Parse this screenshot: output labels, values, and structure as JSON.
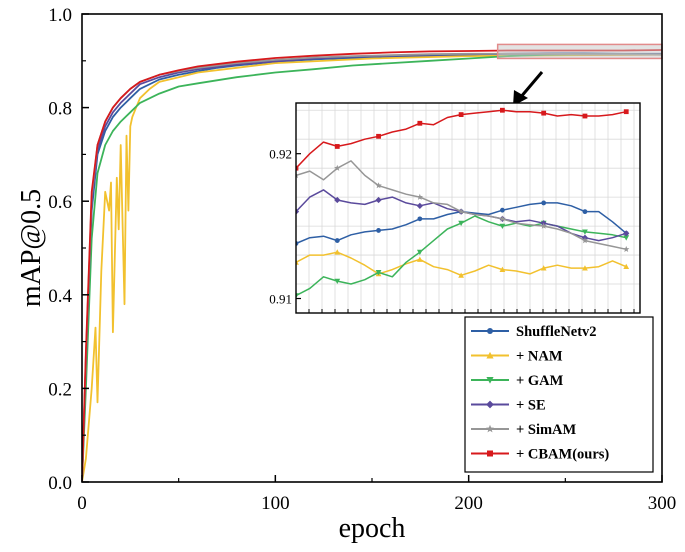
{
  "chart_data": {
    "type": "line",
    "title": "",
    "xlabel": "epoch",
    "ylabel": "mAP@0.5",
    "xlim": [
      0,
      300
    ],
    "ylim": [
      0.0,
      1.0
    ],
    "xticks": [
      0,
      100,
      200,
      300
    ],
    "yticks": [
      0.0,
      0.2,
      0.4,
      0.6,
      0.8,
      1.0
    ],
    "xtick_labels": [
      "0",
      "100",
      "200",
      "300"
    ],
    "ytick_labels": [
      "0.0",
      "0.2",
      "0.4",
      "0.6",
      "0.8",
      "1.0"
    ],
    "legend_position": "bottom-right",
    "series": [
      {
        "name": "ShuffleNetv2",
        "color": "#2e5fa5",
        "marker": "circle",
        "x": [
          0,
          2,
          5,
          8,
          12,
          16,
          20,
          25,
          30,
          40,
          50,
          60,
          70,
          80,
          100,
          120,
          140,
          160,
          180,
          200,
          220,
          240,
          260,
          280,
          300
        ],
        "y": [
          0.0,
          0.25,
          0.58,
          0.7,
          0.75,
          0.78,
          0.8,
          0.82,
          0.84,
          0.86,
          0.87,
          0.878,
          0.885,
          0.89,
          0.898,
          0.903,
          0.906,
          0.909,
          0.911,
          0.913,
          0.915,
          0.916,
          0.916,
          0.915,
          0.915
        ]
      },
      {
        "name": "+ NAM",
        "color": "#f2c12e",
        "marker": "triangle-up",
        "x": [
          0,
          2,
          5,
          7,
          8,
          10,
          12,
          14,
          15,
          16,
          18,
          19,
          20,
          22,
          23,
          24,
          25,
          26,
          28,
          30,
          35,
          40,
          50,
          60,
          80,
          100,
          150,
          200,
          250,
          300
        ],
        "y": [
          0.0,
          0.05,
          0.2,
          0.33,
          0.17,
          0.45,
          0.62,
          0.58,
          0.64,
          0.32,
          0.65,
          0.54,
          0.72,
          0.38,
          0.74,
          0.58,
          0.76,
          0.78,
          0.8,
          0.82,
          0.84,
          0.855,
          0.865,
          0.875,
          0.885,
          0.895,
          0.905,
          0.91,
          0.912,
          0.913
        ]
      },
      {
        "name": "+ GAM",
        "color": "#3cb45a",
        "marker": "triangle-down",
        "x": [
          0,
          2,
          5,
          8,
          12,
          16,
          20,
          25,
          30,
          40,
          50,
          60,
          80,
          100,
          120,
          140,
          160,
          180,
          200,
          220,
          240,
          260,
          280,
          300
        ],
        "y": [
          0.0,
          0.2,
          0.52,
          0.66,
          0.72,
          0.75,
          0.77,
          0.79,
          0.81,
          0.83,
          0.845,
          0.852,
          0.865,
          0.875,
          0.882,
          0.89,
          0.895,
          0.9,
          0.905,
          0.91,
          0.913,
          0.914,
          0.914,
          0.914
        ]
      },
      {
        "name": "+ SE",
        "color": "#5a4a9c",
        "marker": "diamond",
        "x": [
          0,
          2,
          5,
          8,
          12,
          16,
          20,
          25,
          30,
          40,
          50,
          60,
          80,
          100,
          120,
          140,
          160,
          180,
          200,
          220,
          240,
          260,
          280,
          300
        ],
        "y": [
          0.0,
          0.26,
          0.6,
          0.71,
          0.76,
          0.79,
          0.81,
          0.83,
          0.85,
          0.865,
          0.875,
          0.882,
          0.892,
          0.899,
          0.905,
          0.909,
          0.911,
          0.913,
          0.914,
          0.915,
          0.915,
          0.914,
          0.914,
          0.914
        ]
      },
      {
        "name": "+ SimAM",
        "color": "#969696",
        "marker": "star",
        "x": [
          0,
          2,
          5,
          8,
          12,
          16,
          20,
          25,
          30,
          40,
          50,
          60,
          80,
          100,
          120,
          140,
          160,
          180,
          200,
          220,
          240,
          260,
          280,
          300
        ],
        "y": [
          0.0,
          0.27,
          0.61,
          0.72,
          0.77,
          0.8,
          0.82,
          0.84,
          0.855,
          0.87,
          0.878,
          0.885,
          0.895,
          0.902,
          0.907,
          0.91,
          0.912,
          0.914,
          0.915,
          0.915,
          0.915,
          0.914,
          0.914,
          0.913
        ]
      },
      {
        "name": "+ CBAM(ours)",
        "color": "#d7191c",
        "marker": "square",
        "x": [
          0,
          2,
          5,
          8,
          12,
          16,
          20,
          25,
          30,
          40,
          50,
          60,
          80,
          100,
          120,
          140,
          160,
          180,
          200,
          220,
          240,
          260,
          280,
          300
        ],
        "y": [
          0.0,
          0.28,
          0.62,
          0.72,
          0.77,
          0.8,
          0.82,
          0.84,
          0.855,
          0.87,
          0.88,
          0.888,
          0.898,
          0.906,
          0.911,
          0.915,
          0.918,
          0.92,
          0.921,
          0.922,
          0.922,
          0.922,
          0.922,
          0.923
        ]
      }
    ],
    "annotations": [
      {
        "type": "zoom-box",
        "x_range": [
          215,
          300
        ],
        "y_range": [
          0.905,
          0.935
        ]
      },
      {
        "type": "arrow",
        "direction": "down-left",
        "points_to": "inset"
      }
    ],
    "inset": {
      "xlim": [
        210,
        285
      ],
      "ylim": [
        0.909,
        0.9235
      ],
      "yticks": [
        0.91,
        0.92
      ],
      "ytick_labels": [
        "0.91",
        "0.92"
      ],
      "grid": true,
      "series": [
        {
          "name": "ShuffleNetv2",
          "x": [
            210,
            213,
            216,
            219,
            222,
            225,
            228,
            231,
            234,
            237,
            240,
            243,
            246,
            249,
            252,
            255,
            258,
            261,
            264,
            267,
            270,
            273,
            276,
            279,
            282
          ],
          "y": [
            0.9138,
            0.9142,
            0.9143,
            0.914,
            0.9144,
            0.9146,
            0.9147,
            0.9148,
            0.9151,
            0.9155,
            0.9155,
            0.9158,
            0.916,
            0.9159,
            0.9158,
            0.9161,
            0.9163,
            0.9165,
            0.9166,
            0.9166,
            0.9164,
            0.916,
            0.916,
            0.9153,
            0.9145
          ]
        },
        {
          "name": "+ NAM",
          "x": [
            210,
            213,
            216,
            219,
            222,
            225,
            228,
            231,
            234,
            237,
            240,
            243,
            246,
            249,
            252,
            255,
            258,
            261,
            264,
            267,
            270,
            273,
            276,
            279,
            282
          ],
          "y": [
            0.9125,
            0.913,
            0.913,
            0.9132,
            0.9128,
            0.9123,
            0.9117,
            0.912,
            0.9124,
            0.9127,
            0.9122,
            0.912,
            0.9116,
            0.9119,
            0.9123,
            0.912,
            0.9119,
            0.9117,
            0.9121,
            0.9123,
            0.9121,
            0.9121,
            0.9122,
            0.9126,
            0.9122
          ]
        },
        {
          "name": "+ GAM",
          "x": [
            210,
            213,
            216,
            219,
            222,
            225,
            228,
            231,
            234,
            237,
            240,
            243,
            246,
            249,
            252,
            255,
            258,
            261,
            264,
            267,
            270,
            273,
            276,
            279,
            282
          ],
          "y": [
            0.9102,
            0.9107,
            0.9115,
            0.9112,
            0.911,
            0.9113,
            0.9118,
            0.9115,
            0.9125,
            0.9132,
            0.914,
            0.9148,
            0.9152,
            0.9157,
            0.9153,
            0.915,
            0.9152,
            0.915,
            0.9152,
            0.915,
            0.9148,
            0.9146,
            0.9145,
            0.9144,
            0.9142
          ]
        },
        {
          "name": "+ SE",
          "x": [
            210,
            213,
            216,
            219,
            222,
            225,
            228,
            231,
            234,
            237,
            240,
            243,
            246,
            249,
            252,
            255,
            258,
            261,
            264,
            267,
            270,
            273,
            276,
            279,
            282
          ],
          "y": [
            0.916,
            0.917,
            0.9175,
            0.9168,
            0.9166,
            0.9165,
            0.9168,
            0.917,
            0.9166,
            0.9164,
            0.9166,
            0.9162,
            0.916,
            0.9158,
            0.9157,
            0.9155,
            0.9153,
            0.9154,
            0.9152,
            0.915,
            0.9145,
            0.9142,
            0.914,
            0.9142,
            0.9145
          ]
        },
        {
          "name": "+ SimAM",
          "x": [
            210,
            213,
            216,
            219,
            222,
            225,
            228,
            231,
            234,
            237,
            240,
            243,
            246,
            249,
            252,
            255,
            258,
            261,
            264,
            267,
            270,
            273,
            276,
            279,
            282
          ],
          "y": [
            0.9185,
            0.9188,
            0.9182,
            0.919,
            0.9195,
            0.9185,
            0.9178,
            0.9175,
            0.9172,
            0.917,
            0.9166,
            0.9165,
            0.916,
            0.9158,
            0.9157,
            0.9155,
            0.9152,
            0.9151,
            0.915,
            0.9148,
            0.9145,
            0.914,
            0.9138,
            0.9136,
            0.9134
          ]
        },
        {
          "name": "+ CBAM(ours)",
          "x": [
            210,
            213,
            216,
            219,
            222,
            225,
            228,
            231,
            234,
            237,
            240,
            243,
            246,
            249,
            252,
            255,
            258,
            261,
            264,
            267,
            270,
            273,
            276,
            279,
            282
          ],
          "y": [
            0.919,
            0.92,
            0.9208,
            0.9205,
            0.9207,
            0.921,
            0.9212,
            0.9215,
            0.9217,
            0.9221,
            0.922,
            0.9225,
            0.9227,
            0.9228,
            0.9229,
            0.923,
            0.9229,
            0.9229,
            0.9228,
            0.9226,
            0.9227,
            0.9226,
            0.9226,
            0.9227,
            0.9229
          ]
        }
      ]
    }
  }
}
